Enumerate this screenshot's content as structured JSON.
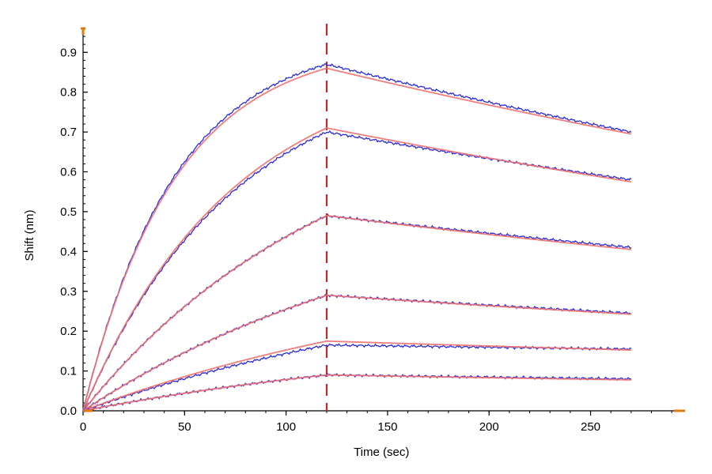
{
  "chart_data": {
    "type": "line",
    "xlabel": "Time (sec)",
    "ylabel": "Shift (nm)",
    "xlim": [
      0,
      295
    ],
    "ylim": [
      0,
      0.96
    ],
    "x_ticks": [
      0,
      50,
      100,
      150,
      200,
      250
    ],
    "x_tick_labels": [
      "0",
      "50",
      "100",
      "150",
      "200",
      "250"
    ],
    "y_ticks": [
      0.0,
      0.1,
      0.2,
      0.3,
      0.4,
      0.5,
      0.6,
      0.7,
      0.8,
      0.9
    ],
    "y_tick_labels": [
      "0.0",
      "0.1",
      "0.2",
      "0.3",
      "0.4",
      "0.5",
      "0.6",
      "0.7",
      "0.8",
      "0.9"
    ],
    "association_end_time": 120,
    "end_time": 270,
    "grid": false,
    "legend": "none",
    "series_kinds": [
      "measured",
      "fit"
    ],
    "curves": [
      {
        "max": 0.87,
        "end": 0.7,
        "fit_max": 0.86
      },
      {
        "max": 0.7,
        "end": 0.58,
        "fit_max": 0.71
      },
      {
        "max": 0.49,
        "end": 0.41,
        "fit_max": 0.49
      },
      {
        "max": 0.29,
        "end": 0.245,
        "fit_max": 0.29
      },
      {
        "max": 0.165,
        "end": 0.155,
        "fit_max": 0.175
      },
      {
        "max": 0.09,
        "end": 0.08,
        "fit_max": 0.09
      }
    ],
    "colors": {
      "measured": "#2b2bd6",
      "fit": "#f07070",
      "marker": "#c8282a",
      "axis": "#000000",
      "axis_end_marker": "#e07a10"
    }
  }
}
